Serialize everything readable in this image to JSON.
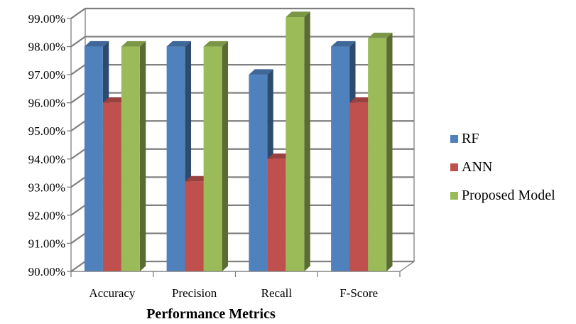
{
  "chart_data": {
    "type": "bar",
    "style": "3d-clustered-column",
    "categories": [
      "Accuracy",
      "Precision",
      "Recall",
      "F-Score"
    ],
    "series": [
      {
        "name": "RF",
        "color": "#4F81BD",
        "values": [
          98.0,
          98.0,
          97.0,
          98.0
        ]
      },
      {
        "name": "ANN",
        "color": "#C0504D",
        "values": [
          96.0,
          93.2,
          94.0,
          96.0
        ]
      },
      {
        "name": "Proposed Model",
        "color": "#9BBB59",
        "values": [
          98.0,
          98.0,
          99.05,
          98.3
        ]
      }
    ],
    "ylim": [
      90,
      99
    ],
    "yticks": [
      "90.00%",
      "91.00%",
      "92.00%",
      "93.00%",
      "94.00%",
      "95.00%",
      "96.00%",
      "97.00%",
      "98.00%",
      "99.00%"
    ],
    "xlabel": "Performance Metrics",
    "ylabel": "",
    "title": "",
    "grid": true,
    "legend": "right"
  }
}
